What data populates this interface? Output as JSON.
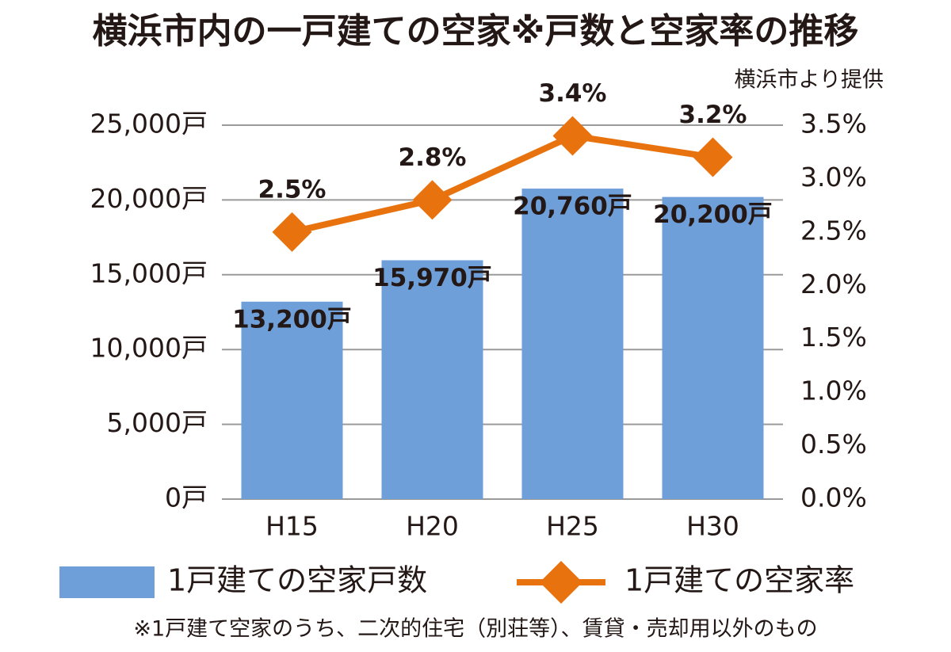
{
  "chart_data": {
    "type": "bar_line",
    "title": "横浜市内の一戸建ての空家※戸数と空家率の推移",
    "source": "横浜市より提供",
    "footnote": "※1戸建て空家のうち、二次的住宅（別荘等）、賃貸・売却用以外のもの",
    "categories": [
      "H15",
      "H20",
      "H25",
      "H30"
    ],
    "series": [
      {
        "name": "1戸建ての空家戸数",
        "type": "bar",
        "color": "#6f9fd8",
        "values": [
          13200,
          15970,
          20760,
          20200
        ],
        "value_labels": [
          "13,200戸",
          "15,970戸",
          "20,760戸",
          "20,200戸"
        ]
      },
      {
        "name": "1戸建ての空家率",
        "type": "line",
        "axis": "y2",
        "color": "#e8730e",
        "values": [
          2.5,
          2.8,
          3.4,
          3.2
        ],
        "value_labels": [
          "2.5%",
          "2.8%",
          "3.4%",
          "3.2%"
        ]
      }
    ],
    "ylim": [
      0,
      25000
    ],
    "yticks": [
      {
        "value": 0,
        "label": "0戸"
      },
      {
        "value": 5000,
        "label": "5,000戸"
      },
      {
        "value": 10000,
        "label": "10,000戸"
      },
      {
        "value": 15000,
        "label": "15,000戸"
      },
      {
        "value": 20000,
        "label": "20,000戸"
      },
      {
        "value": 25000,
        "label": "25,000戸"
      }
    ],
    "y2lim": [
      0,
      3.5
    ],
    "y2ticks": [
      {
        "value": 0,
        "label": "0.0%"
      },
      {
        "value": 0.5,
        "label": "0.5%"
      },
      {
        "value": 1,
        "label": "1.0%"
      },
      {
        "value": 1.5,
        "label": "1.5%"
      },
      {
        "value": 2,
        "label": "2.0%"
      },
      {
        "value": 2.5,
        "label": "2.5%"
      },
      {
        "value": 3,
        "label": "3.0%"
      },
      {
        "value": 3.5,
        "label": "3.5%"
      }
    ],
    "grid": true
  }
}
